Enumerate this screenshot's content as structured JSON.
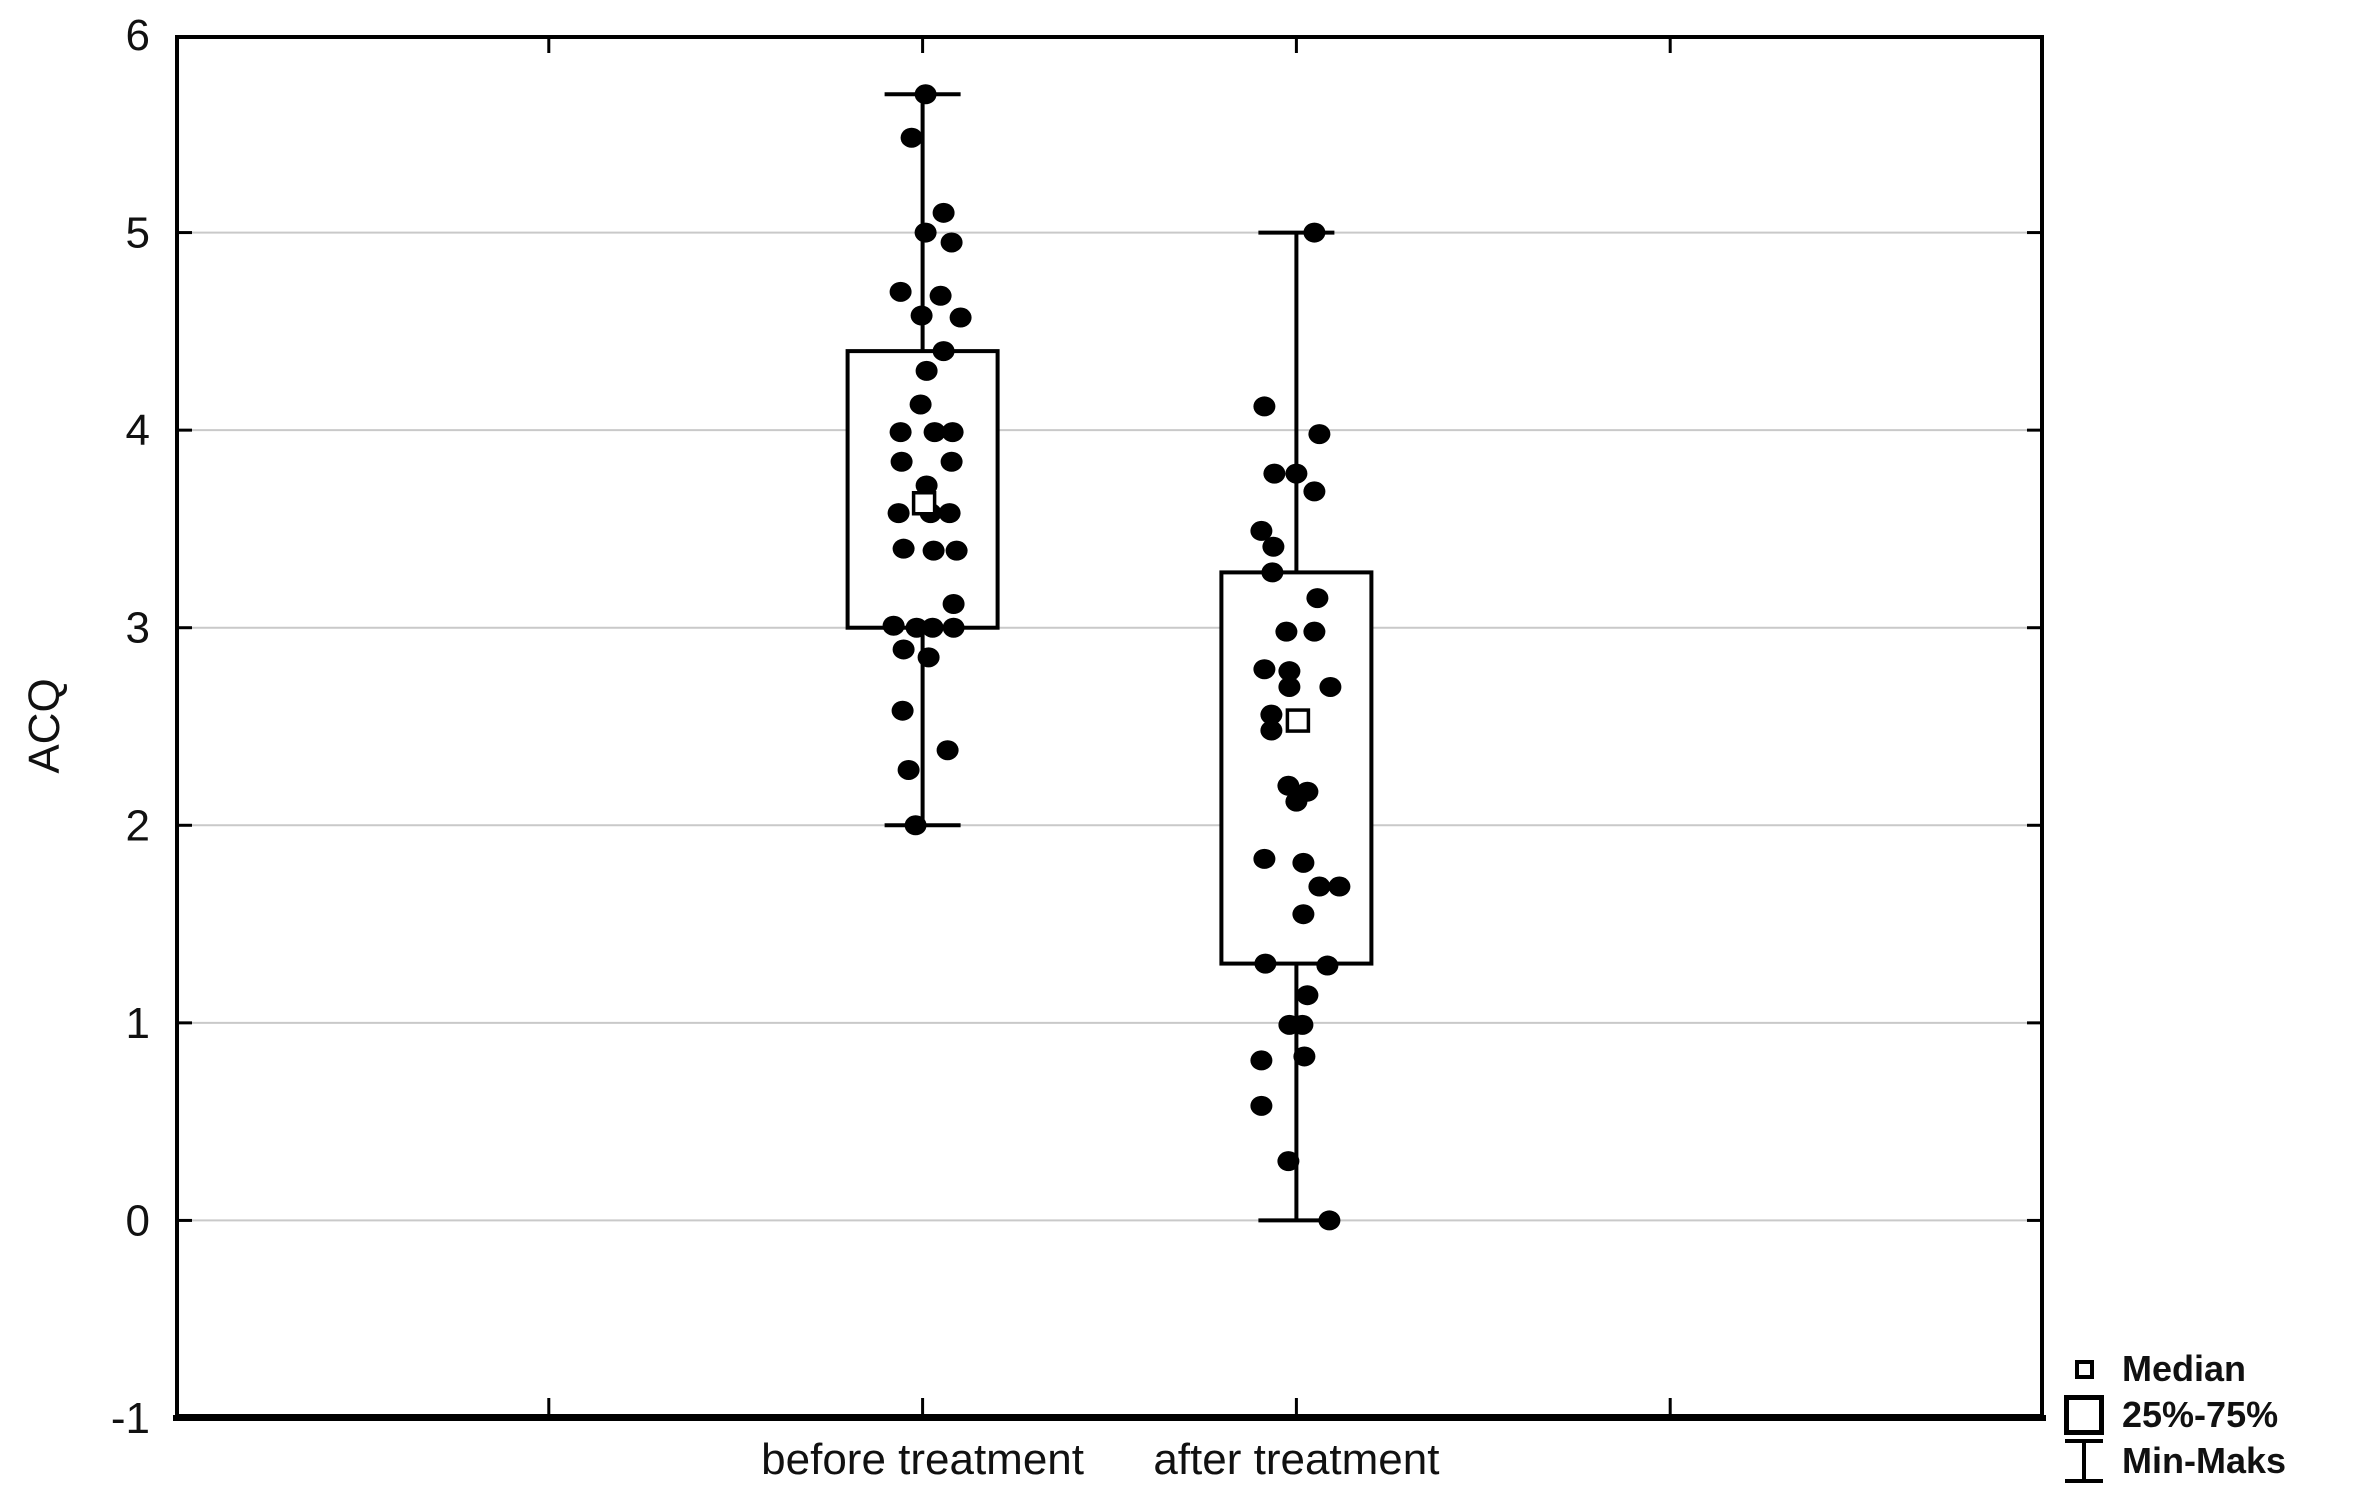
{
  "figure": {
    "background": "#ffffff"
  },
  "y_axis": {
    "title": "ACQ",
    "tick_labels": [
      "6",
      "5",
      "4",
      "3",
      "2",
      "1",
      "0",
      "-1"
    ],
    "tick_values": [
      6,
      5,
      4,
      3,
      2,
      1,
      0,
      -1
    ],
    "gridline_values": [
      0,
      1,
      2,
      3,
      4,
      5
    ]
  },
  "x_axis": {
    "category_labels": [
      "before treatment",
      "after treatment"
    ]
  },
  "legend": {
    "items": [
      {
        "icon": "median-square-icon",
        "label": "Median"
      },
      {
        "icon": "box-square-icon",
        "label": "25%-75%"
      },
      {
        "icon": "whisker-icon",
        "label": "Min-Maks"
      }
    ]
  },
  "colors": {
    "ink": "#000000",
    "grid": "#c9c9c9",
    "text": "#111111",
    "background": "#ffffff"
  },
  "chart_data": {
    "type": "box",
    "title": "",
    "xlabel": "",
    "ylabel": "ACQ",
    "ylim": [
      -1,
      6
    ],
    "grid": "horizontal",
    "legend_position": "bottom-right",
    "legend": [
      "Median",
      "25%-75%",
      "Min-Maks"
    ],
    "categories": [
      "before treatment",
      "after treatment"
    ],
    "series": [
      {
        "name": "before treatment",
        "min": 2.0,
        "q1": 3.0,
        "median": 3.63,
        "q3": 4.4,
        "max": 5.7,
        "points": [
          [
            5.7,
            3
          ],
          [
            5.48,
            -11
          ],
          [
            5.1,
            21
          ],
          [
            5.0,
            3
          ],
          [
            4.95,
            29
          ],
          [
            4.7,
            -22
          ],
          [
            4.68,
            18
          ],
          [
            4.58,
            -1
          ],
          [
            4.57,
            38
          ],
          [
            4.4,
            21
          ],
          [
            4.3,
            4
          ],
          [
            4.13,
            -2
          ],
          [
            3.99,
            -22
          ],
          [
            3.99,
            12
          ],
          [
            3.99,
            30
          ],
          [
            3.84,
            -21
          ],
          [
            3.84,
            29
          ],
          [
            3.72,
            4
          ],
          [
            3.58,
            -24
          ],
          [
            3.58,
            8
          ],
          [
            3.58,
            27
          ],
          [
            3.4,
            -19
          ],
          [
            3.39,
            11
          ],
          [
            3.39,
            34
          ],
          [
            3.12,
            31
          ],
          [
            3.01,
            -29
          ],
          [
            3.0,
            -6
          ],
          [
            3.0,
            10
          ],
          [
            3.0,
            31
          ],
          [
            2.89,
            -19
          ],
          [
            2.85,
            6
          ],
          [
            2.58,
            -20
          ],
          [
            2.38,
            25
          ],
          [
            2.28,
            -14
          ],
          [
            2.0,
            -7
          ]
        ]
      },
      {
        "name": "after treatment",
        "min": 0.0,
        "q1": 1.3,
        "median": 2.53,
        "q3": 3.28,
        "max": 5.0,
        "points": [
          [
            5.0,
            18
          ],
          [
            4.12,
            -32
          ],
          [
            3.98,
            23
          ],
          [
            3.78,
            -22
          ],
          [
            3.78,
            0
          ],
          [
            3.69,
            18
          ],
          [
            3.49,
            -35
          ],
          [
            3.41,
            -23
          ],
          [
            3.28,
            -24
          ],
          [
            3.15,
            21
          ],
          [
            2.98,
            -10
          ],
          [
            2.98,
            18
          ],
          [
            2.79,
            -32
          ],
          [
            2.78,
            -7
          ],
          [
            2.7,
            -7
          ],
          [
            2.7,
            34
          ],
          [
            2.56,
            -25
          ],
          [
            2.48,
            -25
          ],
          [
            2.2,
            -8
          ],
          [
            2.17,
            11
          ],
          [
            2.12,
            0
          ],
          [
            1.83,
            -32
          ],
          [
            1.81,
            7
          ],
          [
            1.69,
            23
          ],
          [
            1.69,
            43
          ],
          [
            1.55,
            7
          ],
          [
            1.3,
            -31
          ],
          [
            1.29,
            31
          ],
          [
            1.14,
            11
          ],
          [
            0.99,
            -7
          ],
          [
            0.99,
            6
          ],
          [
            0.83,
            8
          ],
          [
            0.81,
            -35
          ],
          [
            0.58,
            -35
          ],
          [
            0.3,
            -8
          ],
          [
            0.0,
            33
          ]
        ]
      }
    ]
  }
}
